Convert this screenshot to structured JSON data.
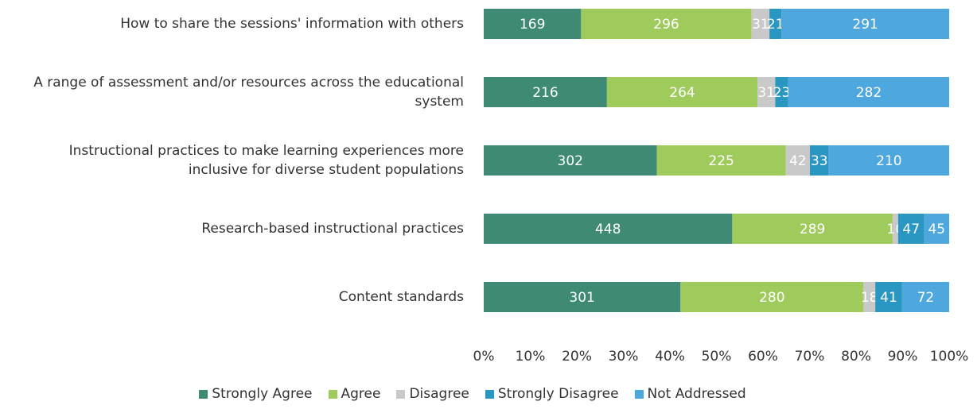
{
  "chart_data": {
    "type": "stacked-bar-100",
    "orientation": "horizontal",
    "categories": [
      "How to share the sessions' information with others",
      "A range of assessment and/or resources across the educational system",
      "Instructional practices to make learning experiences more inclusive for diverse student populations",
      "Research-based instructional practices",
      "Content standards"
    ],
    "series": [
      {
        "name": "Strongly Agree",
        "color": "#3f8a74",
        "values": [
          169,
          216,
          302,
          448,
          301
        ]
      },
      {
        "name": "Agree",
        "color": "#9fca5c",
        "values": [
          296,
          264,
          225,
          289,
          280
        ]
      },
      {
        "name": "Disagree",
        "color": "#c9c9c9",
        "values": [
          31,
          31,
          42,
          10,
          18
        ]
      },
      {
        "name": "Strongly Disagree",
        "color": "#2a97c2",
        "values": [
          21,
          23,
          33,
          47,
          41
        ]
      },
      {
        "name": "Not Addressed",
        "color": "#4ea7dd",
        "values": [
          291,
          282,
          210,
          45,
          72
        ]
      }
    ],
    "xlim": [
      0,
      100
    ],
    "xticks": [
      {
        "value": 0,
        "label": "0%"
      },
      {
        "value": 10,
        "label": "10%"
      },
      {
        "value": 20,
        "label": "20%"
      },
      {
        "value": 30,
        "label": "30%"
      },
      {
        "value": 40,
        "label": "40%"
      },
      {
        "value": 50,
        "label": "50%"
      },
      {
        "value": 60,
        "label": "60%"
      },
      {
        "value": 70,
        "label": "70%"
      },
      {
        "value": 80,
        "label": "80%"
      },
      {
        "value": 90,
        "label": "90%"
      },
      {
        "value": 100,
        "label": "100%"
      }
    ],
    "legend": "bottom"
  }
}
